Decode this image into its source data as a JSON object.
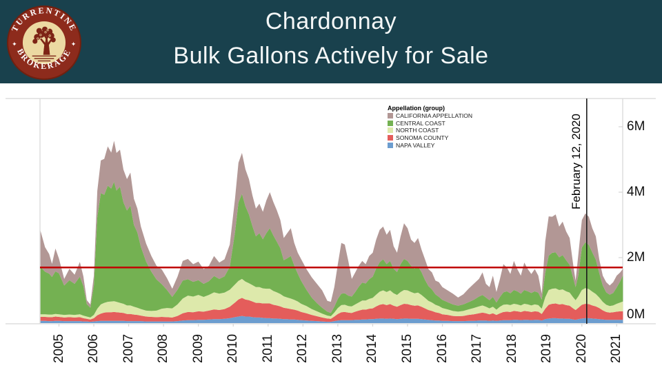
{
  "header": {
    "title_line1": "Chardonnay",
    "title_line2": "Bulk Gallons Actively for Sale",
    "bg_color": "#19414d",
    "logo": {
      "top_text": "TURRENTINE",
      "bottom_text": "BROKERAGE",
      "ring_color": "#8d2b1c",
      "face_color": "#ecd9a2",
      "tree_color": "#7d2416"
    }
  },
  "chart_data": {
    "type": "area",
    "stacked": true,
    "legend_title": "Appellation (group)",
    "y_unit": "millions of gallons",
    "xlim": [
      2004.47,
      2021.18
    ],
    "ylim": [
      0,
      6.86
    ],
    "grid": "off",
    "legend_position": "top-right-inside",
    "x_ticks": [
      2005,
      2006,
      2007,
      2008,
      2009,
      2010,
      2011,
      2012,
      2013,
      2014,
      2015,
      2016,
      2017,
      2018,
      2019,
      2020,
      2021
    ],
    "y_ticks": [
      {
        "v": 0,
        "label": "0M"
      },
      {
        "v": 2,
        "label": "2M"
      },
      {
        "v": 4,
        "label": "4M"
      },
      {
        "v": 6,
        "label": "6M"
      }
    ],
    "annotation": {
      "label": "February 12, 2020",
      "x": 2020.14,
      "line_color": "#1a1a1a"
    },
    "reference_line": {
      "y": 1.7,
      "color": "#c00000"
    },
    "axis_color": "#d8d8d8",
    "x": [
      2004.47,
      2004.6,
      2004.72,
      2004.8,
      2004.9,
      2005.0,
      2005.15,
      2005.3,
      2005.45,
      2005.6,
      2005.7,
      2005.8,
      2005.9,
      2006.0,
      2006.1,
      2006.2,
      2006.3,
      2006.4,
      2006.5,
      2006.58,
      2006.65,
      2006.75,
      2006.85,
      2006.95,
      2007.05,
      2007.15,
      2007.25,
      2007.35,
      2007.5,
      2007.65,
      2007.8,
      2007.95,
      2008.1,
      2008.25,
      2008.4,
      2008.55,
      2008.7,
      2008.85,
      2009.0,
      2009.15,
      2009.3,
      2009.45,
      2009.6,
      2009.75,
      2009.9,
      2010.05,
      2010.15,
      2010.25,
      2010.35,
      2010.45,
      2010.55,
      2010.65,
      2010.75,
      2010.85,
      2010.95,
      2011.05,
      2011.15,
      2011.25,
      2011.35,
      2011.45,
      2011.55,
      2011.65,
      2011.75,
      2011.85,
      2011.95,
      2012.1,
      2012.25,
      2012.4,
      2012.55,
      2012.7,
      2012.8,
      2012.9,
      2013.0,
      2013.1,
      2013.2,
      2013.3,
      2013.4,
      2013.5,
      2013.6,
      2013.7,
      2013.8,
      2013.9,
      2014.0,
      2014.1,
      2014.2,
      2014.3,
      2014.4,
      2014.5,
      2014.6,
      2014.7,
      2014.8,
      2014.9,
      2015.0,
      2015.1,
      2015.2,
      2015.3,
      2015.4,
      2015.5,
      2015.6,
      2015.7,
      2015.8,
      2015.9,
      2016.0,
      2016.15,
      2016.3,
      2016.45,
      2016.6,
      2016.75,
      2016.9,
      2017.05,
      2017.15,
      2017.25,
      2017.35,
      2017.45,
      2017.55,
      2017.65,
      2017.75,
      2017.85,
      2017.95,
      2018.05,
      2018.15,
      2018.25,
      2018.35,
      2018.45,
      2018.55,
      2018.65,
      2018.75,
      2018.85,
      2018.95,
      2019.05,
      2019.15,
      2019.25,
      2019.35,
      2019.45,
      2019.55,
      2019.65,
      2019.75,
      2019.82,
      2019.9,
      2020.0,
      2020.1,
      2020.2,
      2020.3,
      2020.4,
      2020.5,
      2020.6,
      2020.7,
      2020.8,
      2020.9,
      2021.0,
      2021.1,
      2021.18
    ],
    "series": [
      {
        "name": "NAPA VALLEY",
        "color": "#6c9dcf",
        "values": [
          0.07,
          0.07,
          0.06,
          0.06,
          0.07,
          0.07,
          0.06,
          0.06,
          0.06,
          0.06,
          0.05,
          0.05,
          0.04,
          0.05,
          0.06,
          0.07,
          0.07,
          0.07,
          0.07,
          0.07,
          0.07,
          0.07,
          0.07,
          0.06,
          0.06,
          0.06,
          0.06,
          0.06,
          0.05,
          0.05,
          0.05,
          0.05,
          0.05,
          0.05,
          0.06,
          0.08,
          0.09,
          0.09,
          0.1,
          0.1,
          0.11,
          0.12,
          0.12,
          0.13,
          0.15,
          0.18,
          0.2,
          0.22,
          0.2,
          0.2,
          0.18,
          0.17,
          0.17,
          0.16,
          0.15,
          0.15,
          0.14,
          0.14,
          0.13,
          0.12,
          0.12,
          0.11,
          0.11,
          0.1,
          0.09,
          0.08,
          0.07,
          0.06,
          0.05,
          0.04,
          0.04,
          0.06,
          0.08,
          0.09,
          0.09,
          0.09,
          0.09,
          0.1,
          0.1,
          0.11,
          0.11,
          0.12,
          0.12,
          0.13,
          0.14,
          0.14,
          0.13,
          0.14,
          0.13,
          0.12,
          0.13,
          0.14,
          0.14,
          0.13,
          0.13,
          0.13,
          0.12,
          0.11,
          0.1,
          0.09,
          0.08,
          0.08,
          0.07,
          0.07,
          0.06,
          0.06,
          0.06,
          0.07,
          0.07,
          0.08,
          0.08,
          0.08,
          0.07,
          0.08,
          0.07,
          0.08,
          0.09,
          0.09,
          0.09,
          0.1,
          0.1,
          0.09,
          0.1,
          0.1,
          0.09,
          0.1,
          0.1,
          0.08,
          0.12,
          0.14,
          0.15,
          0.15,
          0.14,
          0.14,
          0.13,
          0.13,
          0.11,
          0.1,
          0.12,
          0.14,
          0.15,
          0.15,
          0.14,
          0.13,
          0.12,
          0.11,
          0.1,
          0.1,
          0.1,
          0.1,
          0.1,
          0.1
        ]
      },
      {
        "name": "SONOMA COUNTY",
        "color": "#e45d5b",
        "values": [
          0.12,
          0.12,
          0.12,
          0.12,
          0.13,
          0.12,
          0.11,
          0.12,
          0.11,
          0.12,
          0.1,
          0.08,
          0.07,
          0.1,
          0.18,
          0.22,
          0.25,
          0.26,
          0.26,
          0.27,
          0.26,
          0.25,
          0.24,
          0.22,
          0.22,
          0.2,
          0.19,
          0.17,
          0.15,
          0.14,
          0.13,
          0.14,
          0.13,
          0.12,
          0.16,
          0.22,
          0.25,
          0.24,
          0.26,
          0.25,
          0.27,
          0.3,
          0.28,
          0.3,
          0.35,
          0.45,
          0.52,
          0.55,
          0.52,
          0.5,
          0.48,
          0.45,
          0.45,
          0.44,
          0.45,
          0.45,
          0.42,
          0.4,
          0.38,
          0.35,
          0.33,
          0.32,
          0.3,
          0.28,
          0.25,
          0.22,
          0.18,
          0.15,
          0.12,
          0.1,
          0.09,
          0.14,
          0.2,
          0.24,
          0.25,
          0.23,
          0.22,
          0.25,
          0.28,
          0.3,
          0.3,
          0.32,
          0.33,
          0.38,
          0.42,
          0.44,
          0.42,
          0.44,
          0.4,
          0.38,
          0.42,
          0.45,
          0.44,
          0.42,
          0.4,
          0.41,
          0.38,
          0.34,
          0.3,
          0.28,
          0.25,
          0.23,
          0.2,
          0.18,
          0.16,
          0.15,
          0.16,
          0.18,
          0.2,
          0.22,
          0.24,
          0.22,
          0.2,
          0.22,
          0.18,
          0.22,
          0.25,
          0.26,
          0.25,
          0.27,
          0.26,
          0.25,
          0.27,
          0.26,
          0.25,
          0.26,
          0.25,
          0.2,
          0.32,
          0.42,
          0.44,
          0.45,
          0.43,
          0.44,
          0.42,
          0.4,
          0.34,
          0.3,
          0.35,
          0.42,
          0.44,
          0.43,
          0.4,
          0.38,
          0.34,
          0.28,
          0.24,
          0.22,
          0.23,
          0.25,
          0.26,
          0.26
        ]
      },
      {
        "name": "NORTH COAST",
        "color": "#dde9ab",
        "values": [
          0.08,
          0.08,
          0.08,
          0.08,
          0.08,
          0.08,
          0.08,
          0.08,
          0.08,
          0.09,
          0.08,
          0.07,
          0.06,
          0.1,
          0.2,
          0.28,
          0.3,
          0.32,
          0.33,
          0.33,
          0.32,
          0.3,
          0.28,
          0.26,
          0.26,
          0.24,
          0.22,
          0.2,
          0.18,
          0.18,
          0.2,
          0.25,
          0.28,
          0.28,
          0.35,
          0.45,
          0.5,
          0.48,
          0.5,
          0.45,
          0.48,
          0.52,
          0.5,
          0.5,
          0.52,
          0.55,
          0.57,
          0.58,
          0.55,
          0.52,
          0.5,
          0.48,
          0.48,
          0.46,
          0.45,
          0.45,
          0.42,
          0.4,
          0.38,
          0.35,
          0.33,
          0.32,
          0.3,
          0.28,
          0.25,
          0.22,
          0.18,
          0.15,
          0.12,
          0.09,
          0.08,
          0.12,
          0.18,
          0.22,
          0.22,
          0.2,
          0.2,
          0.22,
          0.25,
          0.28,
          0.28,
          0.3,
          0.32,
          0.36,
          0.4,
          0.42,
          0.4,
          0.42,
          0.38,
          0.36,
          0.4,
          0.42,
          0.42,
          0.4,
          0.38,
          0.39,
          0.36,
          0.32,
          0.28,
          0.26,
          0.23,
          0.21,
          0.19,
          0.17,
          0.15,
          0.14,
          0.15,
          0.17,
          0.19,
          0.21,
          0.22,
          0.2,
          0.18,
          0.2,
          0.16,
          0.2,
          0.22,
          0.22,
          0.21,
          0.22,
          0.21,
          0.2,
          0.22,
          0.21,
          0.2,
          0.21,
          0.2,
          0.16,
          0.35,
          0.45,
          0.46,
          0.46,
          0.44,
          0.45,
          0.42,
          0.4,
          0.34,
          0.3,
          0.35,
          0.45,
          0.48,
          0.46,
          0.42,
          0.38,
          0.32,
          0.26,
          0.22,
          0.2,
          0.21,
          0.24,
          0.27,
          0.3
        ]
      },
      {
        "name": "CENTRAL COAST",
        "color": "#74b152",
        "values": [
          1.45,
          1.3,
          1.25,
          1.15,
          1.3,
          1.25,
          0.9,
          1.05,
          0.95,
          1.15,
          0.9,
          0.38,
          0.3,
          0.9,
          2.8,
          3.4,
          3.3,
          3.55,
          3.45,
          3.65,
          3.4,
          3.55,
          3.1,
          2.9,
          3.05,
          2.5,
          2.3,
          1.9,
          1.5,
          1.2,
          0.95,
          0.75,
          0.55,
          0.35,
          0.45,
          0.55,
          0.5,
          0.45,
          0.45,
          0.4,
          0.42,
          0.5,
          0.45,
          0.5,
          0.7,
          1.6,
          2.4,
          2.6,
          2.3,
          2.1,
          1.8,
          1.55,
          1.65,
          1.5,
          1.7,
          1.85,
          1.7,
          1.55,
          1.4,
          1.1,
          1.2,
          1.3,
          1.05,
          0.85,
          0.7,
          0.5,
          0.35,
          0.25,
          0.18,
          0.12,
          0.1,
          0.18,
          0.28,
          0.35,
          0.35,
          0.32,
          0.3,
          0.38,
          0.48,
          0.55,
          0.52,
          0.6,
          0.65,
          0.8,
          0.9,
          0.95,
          0.85,
          0.9,
          0.75,
          0.7,
          0.85,
          0.95,
          0.9,
          0.8,
          0.75,
          0.8,
          0.7,
          0.55,
          0.45,
          0.4,
          0.32,
          0.28,
          0.25,
          0.22,
          0.2,
          0.18,
          0.2,
          0.22,
          0.25,
          0.3,
          0.32,
          0.28,
          0.25,
          0.3,
          0.22,
          0.3,
          0.38,
          0.4,
          0.36,
          0.42,
          0.4,
          0.36,
          0.42,
          0.4,
          0.38,
          0.4,
          0.38,
          0.28,
          0.75,
          1.05,
          1.1,
          1.1,
          1.0,
          1.05,
          0.95,
          0.85,
          0.6,
          0.4,
          0.65,
          1.3,
          1.4,
          1.35,
          1.2,
          1.05,
          0.75,
          0.5,
          0.38,
          0.35,
          0.38,
          0.5,
          0.65,
          0.8
        ]
      },
      {
        "name": "CALIFORNIA APPELLATION",
        "color": "#b29795",
        "values": [
          1.1,
          0.75,
          0.6,
          0.4,
          0.7,
          0.45,
          0.2,
          0.35,
          0.28,
          0.45,
          0.3,
          0.12,
          0.1,
          0.3,
          0.8,
          1.0,
          1.1,
          1.2,
          1.1,
          1.25,
          1.15,
          1.13,
          1.0,
          0.96,
          1.01,
          0.8,
          0.73,
          0.62,
          0.55,
          0.48,
          0.42,
          0.45,
          0.36,
          0.25,
          0.4,
          0.6,
          0.62,
          0.54,
          0.57,
          0.45,
          0.47,
          0.61,
          0.5,
          0.52,
          0.68,
          1.02,
          1.21,
          1.25,
          1.13,
          1.08,
          0.94,
          0.85,
          0.9,
          0.84,
          1.0,
          1.1,
          1.02,
          0.96,
          0.86,
          0.68,
          0.77,
          0.85,
          0.69,
          0.64,
          0.66,
          0.63,
          0.62,
          0.59,
          0.53,
          0.33,
          0.34,
          0.6,
          1.06,
          1.55,
          1.49,
          1.06,
          0.54,
          0.6,
          0.64,
          0.66,
          0.59,
          0.71,
          0.73,
          0.88,
          0.99,
          1.0,
          0.9,
          0.95,
          0.69,
          0.59,
          0.85,
          1.09,
          1.0,
          0.8,
          0.79,
          0.87,
          0.69,
          0.63,
          0.52,
          0.52,
          0.42,
          0.45,
          0.39,
          0.36,
          0.33,
          0.25,
          0.31,
          0.41,
          0.49,
          0.54,
          0.69,
          0.42,
          0.4,
          0.65,
          0.32,
          0.55,
          0.86,
          0.73,
          0.59,
          0.89,
          0.68,
          0.55,
          0.84,
          0.68,
          0.58,
          0.68,
          0.52,
          0.18,
          0.96,
          1.2,
          1.1,
          1.16,
          0.94,
          1.02,
          0.88,
          0.82,
          0.41,
          0.2,
          0.63,
          0.84,
          0.88,
          0.86,
          0.74,
          0.71,
          0.42,
          0.3,
          0.31,
          0.28,
          0.33,
          0.36,
          0.27,
          0.2
        ]
      }
    ]
  }
}
